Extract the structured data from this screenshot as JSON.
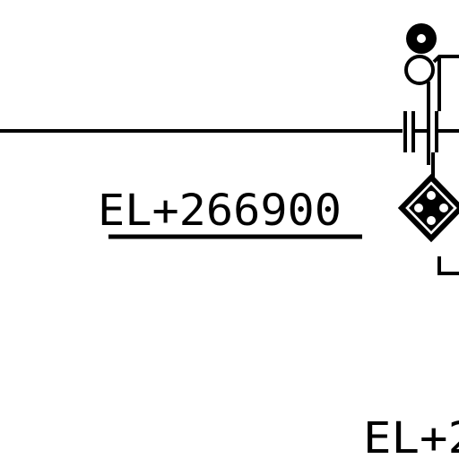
{
  "drawing": {
    "labels": {
      "elevation_main": "EL+266900",
      "elevation_lower": "EL+2"
    },
    "colors": {
      "ink": "#000000",
      "paper": "#ffffff"
    },
    "symbols": [
      "instrument-tap-icon",
      "isolation-fitting-icon",
      "diamond-instrument-icon"
    ]
  }
}
